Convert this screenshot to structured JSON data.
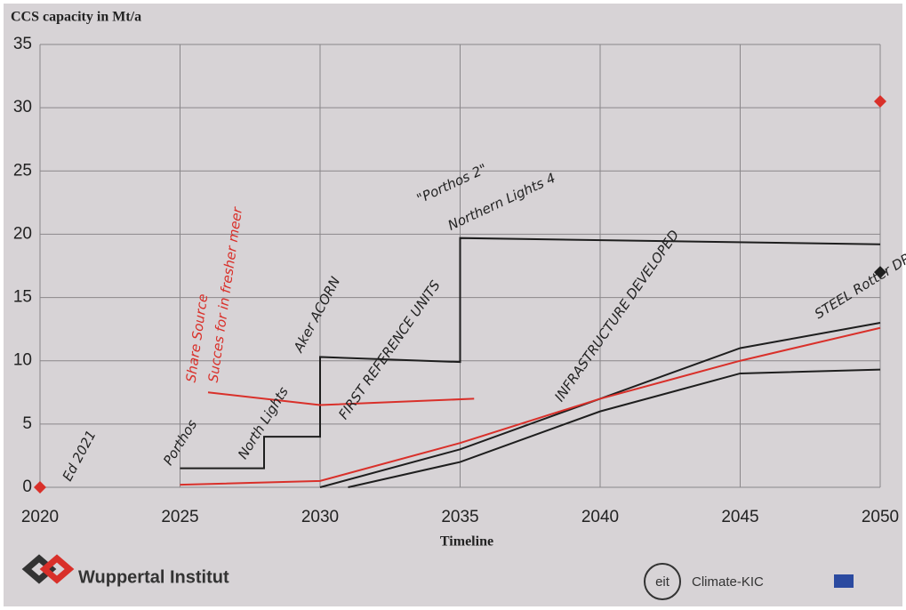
{
  "chart_data": {
    "type": "line",
    "title": "CCS capacity in Mt/a",
    "x_label": "Timeline",
    "xlim": [
      2020,
      2050
    ],
    "xticks": [
      2020,
      2025,
      2030,
      2035,
      2040,
      2045,
      2050
    ],
    "ylim": [
      0,
      35
    ],
    "yticks": [
      0,
      5,
      10,
      15,
      20,
      25,
      30,
      35
    ],
    "grid": true,
    "series": [
      {
        "color": "#1e1e1e",
        "style": "line",
        "x": [
          2025,
          2028,
          2028,
          2030,
          2030,
          2035,
          2035,
          2050
        ],
        "values": [
          1.5,
          1.5,
          4,
          4,
          10.3,
          9.9,
          19.7,
          19.2
        ]
      },
      {
        "color": "#1e1e1e",
        "style": "line",
        "x": [
          2030,
          2035,
          2040,
          2045,
          2050
        ],
        "values": [
          0,
          3,
          7,
          11,
          13
        ]
      },
      {
        "color": "#1e1e1e",
        "style": "line",
        "x": [
          2031,
          2035,
          2040,
          2045,
          2050
        ],
        "values": [
          0,
          2,
          6,
          9,
          9.3
        ]
      },
      {
        "color": "#d9302a",
        "style": "line",
        "x": [
          2025,
          2030,
          2035,
          2040,
          2045,
          2050
        ],
        "values": [
          0.2,
          0.5,
          3.5,
          7,
          10,
          12.6
        ]
      },
      {
        "color": "#d9302a",
        "style": "line",
        "x": [
          2026,
          2030,
          2035.5
        ],
        "values": [
          7.5,
          6.5,
          7
        ]
      },
      {
        "color": "#d9302a",
        "style": "marker",
        "x": [
          2020,
          2050
        ],
        "values": [
          0,
          30.5
        ]
      },
      {
        "color": "#1e1e1e",
        "style": "marker",
        "x": [
          2050
        ],
        "values": [
          17
        ]
      }
    ],
    "annotations": [
      {
        "text": "Ed 2021"
      },
      {
        "text": "Porthos"
      },
      {
        "text": "North Lights"
      },
      {
        "text": "Aker ACORN"
      },
      {
        "text": "FIRST REFERENCE UNITS"
      },
      {
        "text": "\"Porthos 2\""
      },
      {
        "text": "Northern Lights 4"
      },
      {
        "text": "Share Source"
      },
      {
        "text": "Succes for in fresher meer"
      },
      {
        "text": "INFRASTRUCTURE DEVELOPED"
      },
      {
        "text": "STEEL Rotter DR"
      }
    ],
    "logos": [
      "Wuppertal Institut",
      "eit",
      "Climate-KIC"
    ]
  }
}
